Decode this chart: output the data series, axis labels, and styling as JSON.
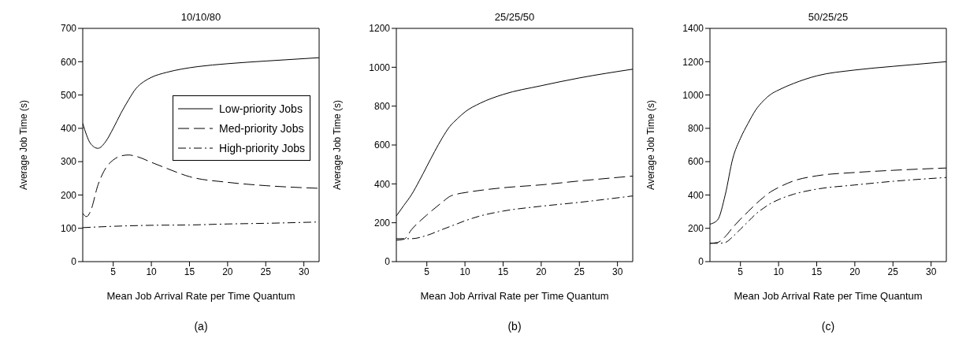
{
  "chart_data": [
    {
      "type": "line",
      "title": "10/10/80",
      "xlabel": "Mean Job Arrival Rate per Time Quantum",
      "ylabel": "Average Job Time (s)",
      "annotations": [
        "(a)"
      ],
      "xlim": [
        1,
        32
      ],
      "xticks": [
        5,
        10,
        15,
        20,
        25,
        30
      ],
      "ylim": [
        0,
        700
      ],
      "yticks": [
        0,
        100,
        200,
        300,
        400,
        500,
        600,
        700
      ],
      "legend": "right",
      "marker": "none",
      "series": [
        {
          "name": "Low-priority Jobs",
          "color": "#000000",
          "line_style": "solid",
          "x": [
            1,
            1.5,
            2,
            3,
            4,
            5,
            6,
            7,
            8,
            9,
            10,
            12,
            14,
            16,
            20,
            25,
            32
          ],
          "values": [
            415,
            380,
            355,
            340,
            360,
            400,
            445,
            485,
            520,
            540,
            553,
            568,
            578,
            585,
            594,
            602,
            612
          ]
        },
        {
          "name": "Med-priority Jobs",
          "color": "#000000",
          "line_style": "dashed",
          "x": [
            1,
            1.5,
            2,
            3,
            4,
            5,
            6,
            7,
            8,
            10,
            12,
            15,
            20,
            25,
            32
          ],
          "values": [
            145,
            135,
            150,
            230,
            280,
            305,
            317,
            320,
            316,
            298,
            280,
            255,
            238,
            228,
            220
          ]
        },
        {
          "name": "High-priority Jobs",
          "color": "#000000",
          "line_style": "dashdot",
          "x": [
            1,
            5,
            10,
            15,
            20,
            25,
            32
          ],
          "values": [
            102,
            106,
            109,
            110,
            113,
            115,
            119
          ]
        }
      ]
    },
    {
      "type": "line",
      "title": "25/25/50",
      "xlabel": "Mean Job Arrival Rate per Time Quantum",
      "ylabel": "Average Job Time (s)",
      "annotations": [
        "(b)"
      ],
      "xlim": [
        1,
        32
      ],
      "xticks": [
        5,
        10,
        15,
        20,
        25,
        30
      ],
      "ylim": [
        0,
        1200
      ],
      "yticks": [
        0,
        200,
        400,
        600,
        800,
        1000,
        1200
      ],
      "marker": "none",
      "series": [
        {
          "color": "#000000",
          "line_style": "solid",
          "x": [
            1,
            2,
            3,
            4,
            5,
            6,
            7,
            8,
            9,
            10,
            12,
            15,
            20,
            25,
            32
          ],
          "values": [
            235,
            290,
            345,
            415,
            490,
            565,
            635,
            695,
            735,
            770,
            815,
            860,
            905,
            945,
            990
          ]
        },
        {
          "color": "#000000",
          "line_style": "dashed",
          "x": [
            1,
            2,
            3,
            5,
            7,
            8,
            9,
            10,
            15,
            20,
            25,
            32
          ],
          "values": [
            110,
            115,
            165,
            240,
            305,
            335,
            348,
            355,
            380,
            395,
            415,
            440
          ]
        },
        {
          "color": "#000000",
          "line_style": "dashdot",
          "x": [
            1,
            3,
            5,
            7,
            9,
            10,
            12,
            15,
            20,
            25,
            32
          ],
          "values": [
            118,
            118,
            135,
            165,
            195,
            210,
            235,
            260,
            285,
            305,
            338
          ]
        }
      ]
    },
    {
      "type": "line",
      "title": "50/25/25",
      "xlabel": "Mean Job Arrival Rate per Time Quantum",
      "ylabel": "Average Job Time (s)",
      "annotations": [
        "(c)"
      ],
      "xlim": [
        1,
        32
      ],
      "xticks": [
        5,
        10,
        15,
        20,
        25,
        30
      ],
      "ylim": [
        0,
        1400
      ],
      "yticks": [
        0,
        200,
        400,
        600,
        800,
        1000,
        1200,
        1400
      ],
      "marker": "none",
      "series": [
        {
          "color": "#000000",
          "line_style": "solid",
          "x": [
            1,
            2,
            3,
            4,
            5,
            6,
            7,
            8,
            9,
            10,
            12,
            15,
            20,
            25,
            32
          ],
          "values": [
            225,
            250,
            400,
            620,
            740,
            830,
            910,
            965,
            1005,
            1030,
            1070,
            1115,
            1150,
            1172,
            1200
          ]
        },
        {
          "color": "#000000",
          "line_style": "dashed",
          "x": [
            1,
            2,
            3,
            4,
            5,
            6,
            7,
            8,
            9,
            10,
            12,
            15,
            20,
            25,
            32
          ],
          "values": [
            110,
            115,
            150,
            205,
            255,
            300,
            345,
            385,
            420,
            445,
            485,
            515,
            535,
            548,
            562
          ]
        },
        {
          "color": "#000000",
          "line_style": "dashdot",
          "x": [
            1,
            2,
            3,
            4,
            5,
            6,
            7,
            8,
            9,
            10,
            12,
            15,
            20,
            25,
            32
          ],
          "values": [
            110,
            110,
            115,
            150,
            195,
            240,
            285,
            320,
            350,
            372,
            405,
            435,
            460,
            482,
            505
          ]
        }
      ]
    }
  ]
}
